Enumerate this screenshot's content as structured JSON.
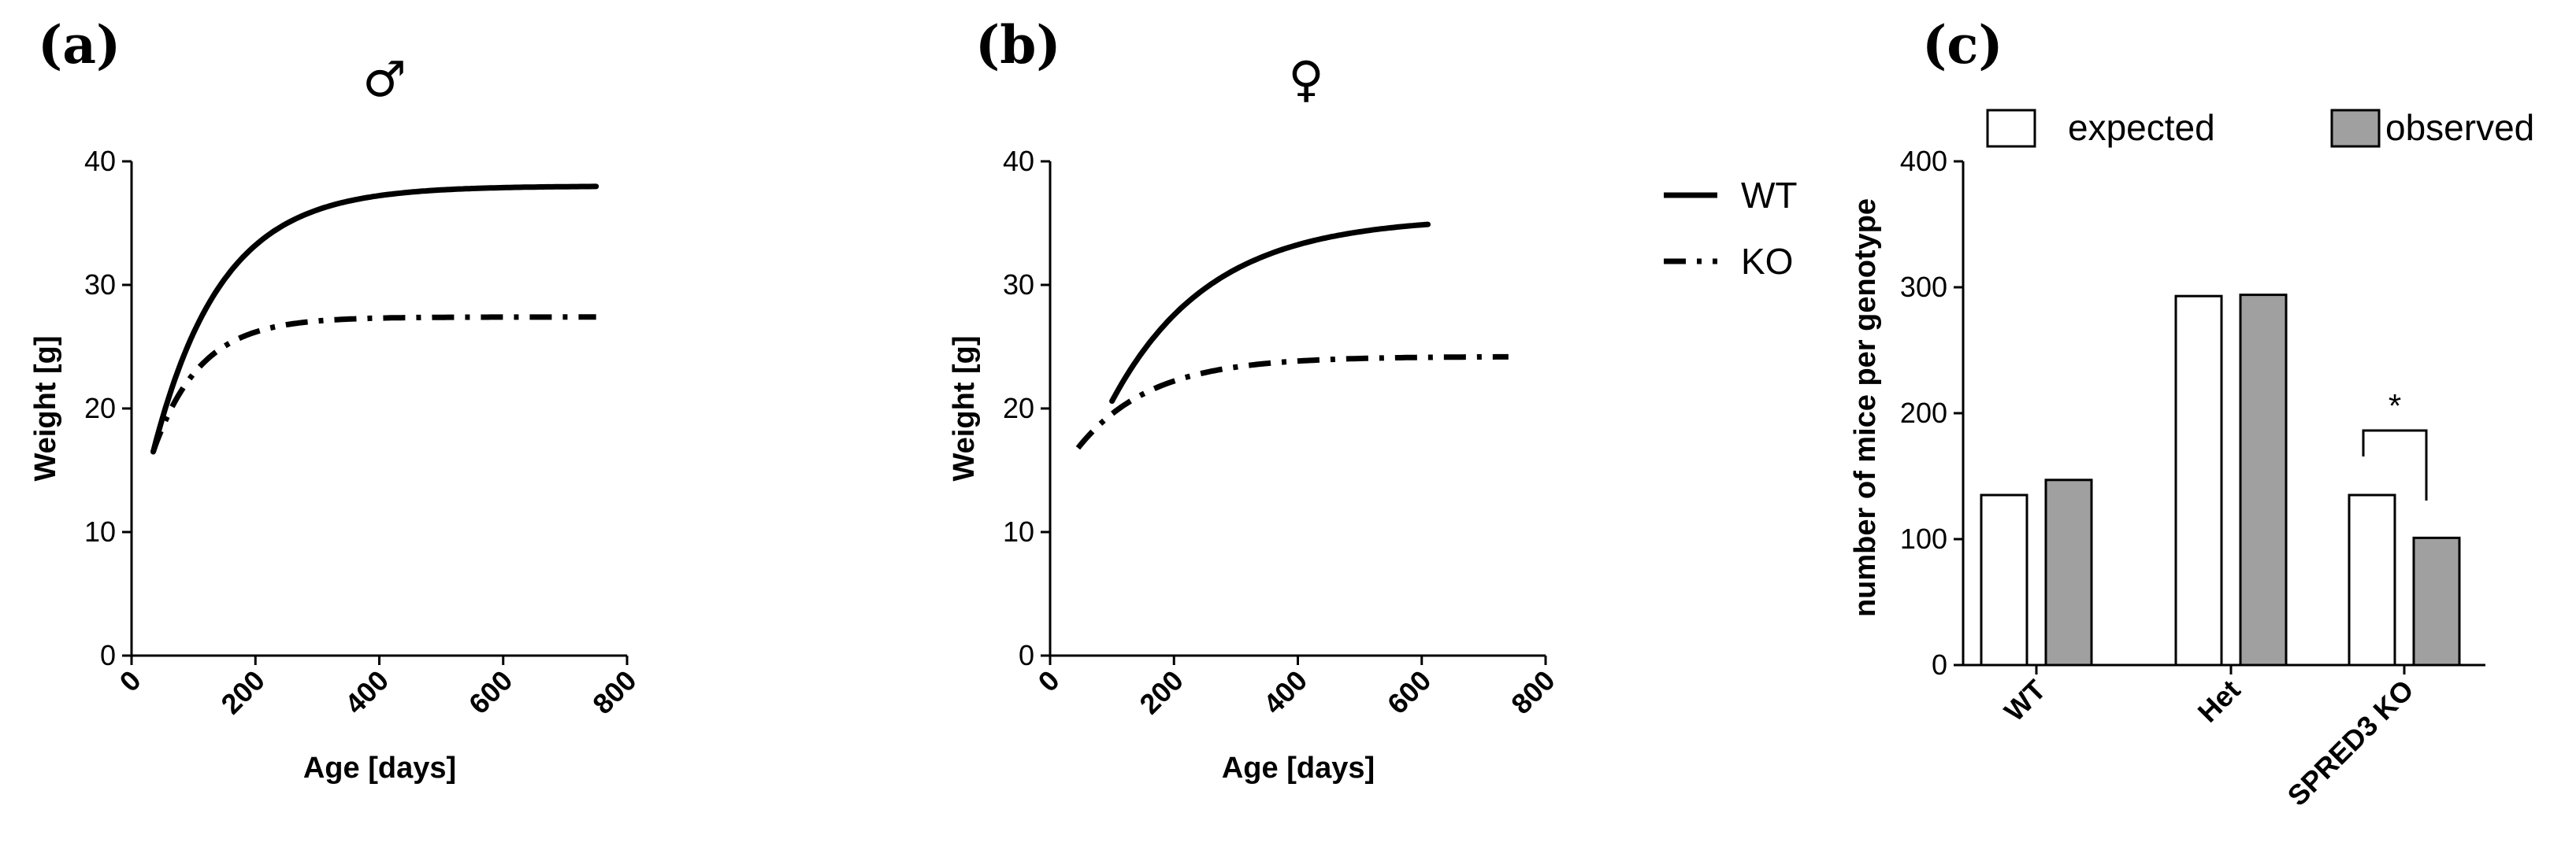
{
  "chart_data": [
    {
      "panel": "(a)",
      "type": "line",
      "title": "♂",
      "xlabel": "Age [days]",
      "ylabel": "Weight [g]",
      "xlim": [
        0,
        800
      ],
      "ylim": [
        0,
        40
      ],
      "xticks": [
        "0",
        "200",
        "400",
        "600",
        "800"
      ],
      "yticks": [
        "0",
        "10",
        "20",
        "30",
        "40"
      ],
      "series": [
        {
          "name": "WT",
          "style": "solid",
          "x_start": 35,
          "x_end": 750,
          "y_start": 16.5,
          "plateau": 38,
          "rate": 0.0091
        },
        {
          "name": "KO",
          "style": "dashdot",
          "x_start": 35,
          "x_end": 750,
          "y_start": 16.5,
          "plateau": 27.4,
          "rate": 0.0133
        }
      ]
    },
    {
      "panel": "(b)",
      "type": "line",
      "title": "♀",
      "xlabel": "Age [days]",
      "ylabel": "Weight [g]",
      "xlim": [
        0,
        800
      ],
      "ylim": [
        0,
        40
      ],
      "xticks": [
        "0",
        "200",
        "400",
        "600",
        "800"
      ],
      "yticks": [
        "0",
        "10",
        "20",
        "30",
        "40"
      ],
      "series": [
        {
          "name": "WT",
          "style": "solid",
          "x_start": 100,
          "x_end": 610,
          "y_start": 20.6,
          "plateau": 35.5,
          "rate": 0.0063
        },
        {
          "name": "KO",
          "style": "dashdot",
          "x_start": 45,
          "x_end": 740,
          "y_start": 16.8,
          "plateau": 24.2,
          "rate": 0.0085
        }
      ]
    },
    {
      "panel": "(c)",
      "type": "bar",
      "ylabel": "number of mice per genotype",
      "categories": [
        "WT",
        "Het",
        "SPRED3 KO"
      ],
      "ylim": [
        0,
        400
      ],
      "yticks": [
        "0",
        "100",
        "200",
        "300",
        "400"
      ],
      "series": [
        {
          "name": "expected",
          "color": "#ffffff",
          "values": [
            135,
            293,
            135
          ]
        },
        {
          "name": "observed",
          "color": "#a0a0a0",
          "values": [
            147,
            294,
            101
          ]
        }
      ],
      "annotations": [
        {
          "category": "SPRED3 KO",
          "text": "*"
        }
      ]
    }
  ],
  "legend_ab": [
    {
      "label": "WT",
      "style": "solid"
    },
    {
      "label": "KO",
      "style": "dashdot"
    }
  ]
}
